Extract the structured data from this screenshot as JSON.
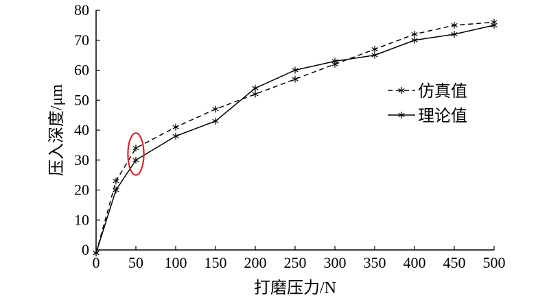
{
  "chart_data": {
    "type": "line",
    "xlabel": "打磨压力/N",
    "ylabel": "压入深度/μm",
    "xlim": [
      0,
      500
    ],
    "ylim": [
      0,
      80
    ],
    "xticks": [
      0,
      50,
      100,
      150,
      200,
      250,
      300,
      350,
      400,
      450,
      500
    ],
    "yticks": [
      0,
      10,
      20,
      30,
      40,
      50,
      60,
      70,
      80
    ],
    "grid": false,
    "legend_position": "right",
    "series": [
      {
        "name": "仿真值",
        "line_style": "dashed",
        "marker": "asterisk",
        "color": "#000000",
        "x": [
          0,
          25,
          50,
          100,
          150,
          200,
          250,
          300,
          350,
          400,
          450,
          500
        ],
        "y": [
          -1,
          23,
          34,
          41,
          47,
          52,
          57,
          62,
          67,
          72,
          75,
          76
        ]
      },
      {
        "name": "理论值",
        "line_style": "solid",
        "marker": "asterisk",
        "color": "#000000",
        "x": [
          0,
          25,
          50,
          100,
          150,
          200,
          250,
          300,
          350,
          400,
          450,
          500
        ],
        "y": [
          -1,
          20,
          30,
          38,
          43,
          54,
          60,
          63,
          65,
          70,
          72,
          75
        ]
      }
    ],
    "annotation": {
      "type": "ellipse",
      "color": "#d62728",
      "x": 50,
      "y": 32,
      "rx_data": 10,
      "ry_data": 7
    }
  }
}
